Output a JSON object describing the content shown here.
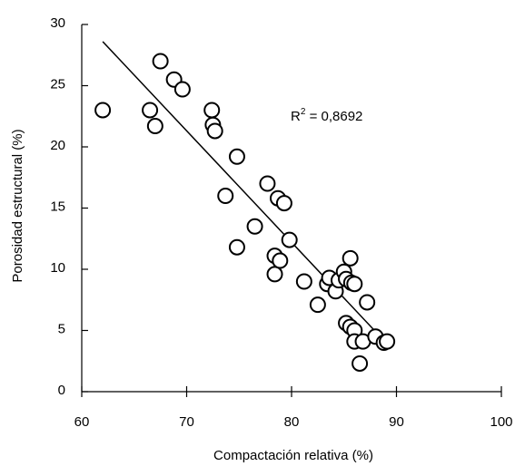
{
  "chart_data": {
    "type": "scatter",
    "title": "",
    "xlabel": "Compactación relativa (%)",
    "ylabel": "Porosidad estructural (%)",
    "xlim": [
      60,
      100
    ],
    "ylim": [
      0,
      30
    ],
    "x_ticks": [
      "60",
      "70",
      "80",
      "90",
      "100"
    ],
    "y_ticks": [
      "0",
      "5",
      "10",
      "15",
      "20",
      "25",
      "30"
    ],
    "grid": false,
    "annotation": {
      "prefix": "R",
      "superscript": "2",
      "suffix": " = 0,8692"
    },
    "trendline": {
      "x": [
        62,
        89
      ],
      "y": [
        28.6,
        4.0
      ]
    },
    "points": [
      [
        62.0,
        23.0
      ],
      [
        66.5,
        23.0
      ],
      [
        67.0,
        21.7
      ],
      [
        67.5,
        27.0
      ],
      [
        68.8,
        25.5
      ],
      [
        69.6,
        24.7
      ],
      [
        72.4,
        23.0
      ],
      [
        72.5,
        21.8
      ],
      [
        72.7,
        21.3
      ],
      [
        74.8,
        19.2
      ],
      [
        73.7,
        16.0
      ],
      [
        74.8,
        11.8
      ],
      [
        76.5,
        13.5
      ],
      [
        77.7,
        17.0
      ],
      [
        78.7,
        15.8
      ],
      [
        79.3,
        15.4
      ],
      [
        79.8,
        12.4
      ],
      [
        78.4,
        11.1
      ],
      [
        78.4,
        9.6
      ],
      [
        78.9,
        10.7
      ],
      [
        81.2,
        9.0
      ],
      [
        82.5,
        7.1
      ],
      [
        83.4,
        8.8
      ],
      [
        83.6,
        9.3
      ],
      [
        84.2,
        8.2
      ],
      [
        84.5,
        9.1
      ],
      [
        85.0,
        9.8
      ],
      [
        85.2,
        9.2
      ],
      [
        85.6,
        10.9
      ],
      [
        85.7,
        8.9
      ],
      [
        86.0,
        8.8
      ],
      [
        87.2,
        7.3
      ],
      [
        85.2,
        5.6
      ],
      [
        85.6,
        5.3
      ],
      [
        86.0,
        5.0
      ],
      [
        86.0,
        4.1
      ],
      [
        86.8,
        4.1
      ],
      [
        88.0,
        4.5
      ],
      [
        88.8,
        4.0
      ],
      [
        89.1,
        4.1
      ],
      [
        86.5,
        2.3
      ]
    ]
  }
}
